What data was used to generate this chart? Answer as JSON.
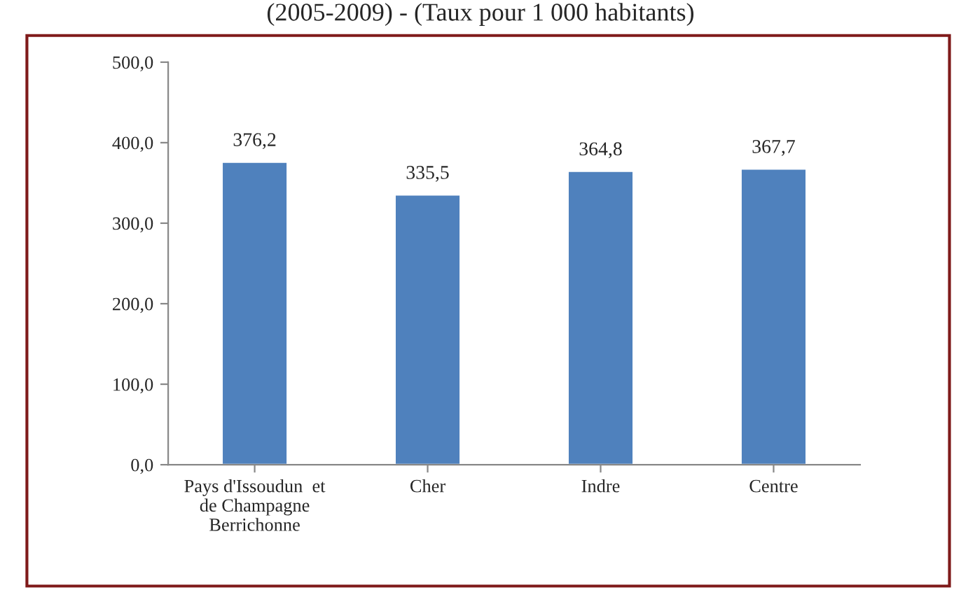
{
  "chart_data": {
    "type": "bar",
    "title": "(2005-2009) - (Taux pour 1 000 habitants)",
    "categories": [
      "Pays d'Issoudun  et\nde Champagne\nBerrichonne",
      "Cher",
      "Indre",
      "Centre"
    ],
    "values": [
      376.2,
      335.5,
      364.8,
      367.7
    ],
    "color": "#4f81bd",
    "value_labels": [
      "376,2",
      "335,5",
      "364,8",
      "367,7"
    ],
    "ylim": [
      0,
      500
    ],
    "yticks": [
      {
        "value": 0,
        "label": "0,0"
      },
      {
        "value": 100,
        "label": "100,0"
      },
      {
        "value": 200,
        "label": "200,0"
      },
      {
        "value": 300,
        "label": "300,0"
      },
      {
        "value": 400,
        "label": "400,0"
      },
      {
        "value": 500,
        "label": "500,0"
      }
    ],
    "grid": false
  }
}
